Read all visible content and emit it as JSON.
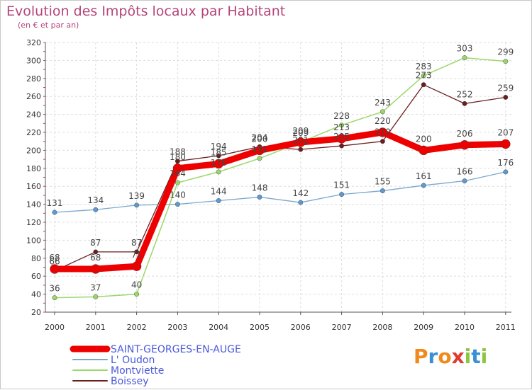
{
  "chart_data": {
    "type": "line",
    "title": "Evolution des Impôts locaux par Habitant",
    "subtitle": "(en € et par an)",
    "xlabel": "",
    "ylabel": "",
    "categories": [
      "2000",
      "2001",
      "2002",
      "2003",
      "2004",
      "2005",
      "2006",
      "2007",
      "2008",
      "2009",
      "2010",
      "2011"
    ],
    "ylim": [
      20,
      320
    ],
    "yticks": [
      20,
      40,
      60,
      80,
      100,
      120,
      140,
      160,
      180,
      200,
      220,
      240,
      260,
      280,
      300,
      320
    ],
    "grid": true,
    "legend_position": "bottom-left",
    "series": [
      {
        "name": "Boissey",
        "color": "#6b1e1e",
        "values": [
          66,
          87,
          87,
          188,
          194,
          204,
          201,
          205,
          210,
          273,
          252,
          259
        ],
        "labels": [
          "66",
          "87",
          "87",
          "188",
          "194",
          "204",
          "201",
          "205",
          "210",
          "273",
          "252",
          "259"
        ]
      },
      {
        "name": "Montviette",
        "color": "#9bd86a",
        "values": [
          36,
          37,
          40,
          164,
          176,
          191,
          209,
          228,
          243,
          283,
          303,
          299
        ],
        "labels": [
          "36",
          "37",
          "40",
          "164",
          "176",
          "191",
          "209",
          "228",
          "243",
          "283",
          "303",
          "299"
        ]
      },
      {
        "name": "L' Oudon",
        "color": "#7aa7cf",
        "values": [
          131,
          134,
          139,
          140,
          144,
          148,
          142,
          151,
          155,
          161,
          166,
          176
        ],
        "labels": [
          "131",
          "134",
          "139",
          "140",
          "144",
          "148",
          "142",
          "151",
          "155",
          "161",
          "166",
          "176"
        ]
      },
      {
        "name": "SAINT-GEORGES-EN-AUGE",
        "color": "#ee0000",
        "values": [
          68,
          68,
          71,
          180,
          185,
          200,
          209,
          213,
          220,
          200,
          206,
          207
        ],
        "labels": [
          "68",
          "68",
          "71",
          "180",
          "185",
          "200",
          "209",
          "213",
          "220",
          "200",
          "206",
          "207"
        ]
      }
    ]
  },
  "legend": [
    "SAINT-GEORGES-EN-AUGE",
    "L' Oudon",
    "Montviette",
    "Boissey"
  ],
  "logo": {
    "letters": [
      "P",
      "r",
      "o",
      "x",
      "i",
      "t",
      "i"
    ]
  }
}
